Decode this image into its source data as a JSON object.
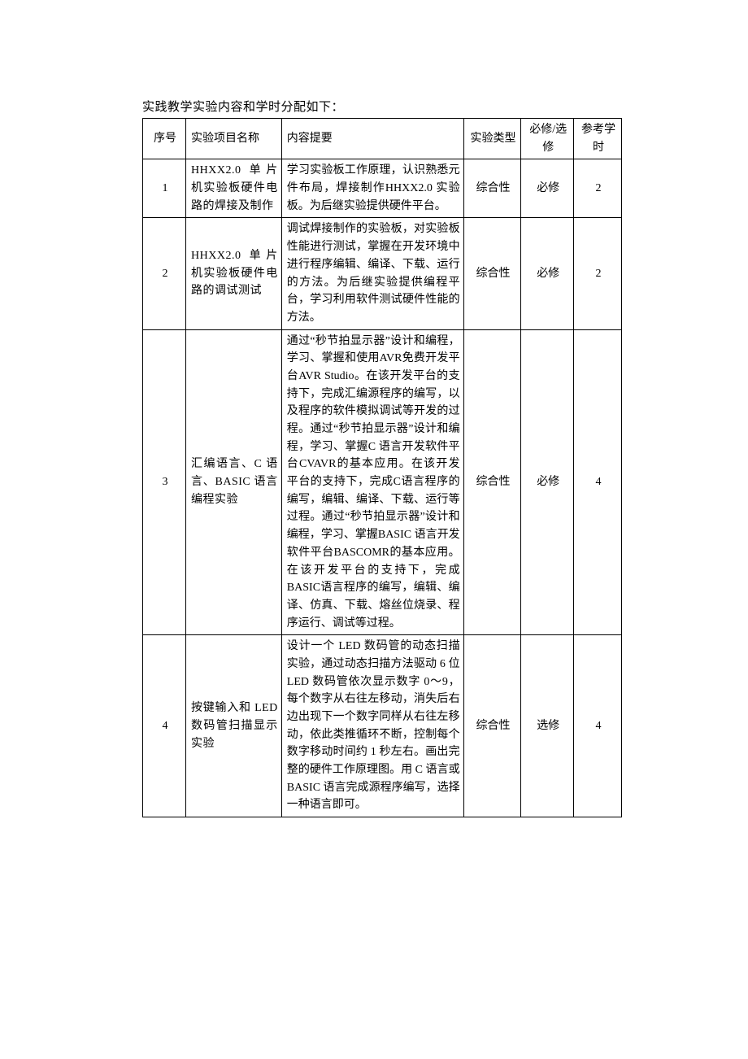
{
  "caption": "实践教学实验内容和学时分配如下：",
  "headers": {
    "index": "序号",
    "name": "实验项目名称",
    "desc": "内容提要",
    "type": "实验类型",
    "req": "必修/选修",
    "hours": "参考学时"
  },
  "rows": [
    {
      "index": "1",
      "name": "HHXX2.0 单片机实验板硬件电路的焊接及制作",
      "desc": "学习实验板工作原理，认识熟悉元件布局，焊接制作HHXX2.0 实验板。为后继实验提供硬件平台。",
      "type": "综合性",
      "req": "必修",
      "hours": "2"
    },
    {
      "index": "2",
      "name": "HHXX2.0 单片机实验板硬件电路的调试测试",
      "desc": "调试焊接制作的实验板，对实验板性能进行测试，掌握在开发环境中进行程序编辑、编译、下载、运行的方法。为后继实验提供编程平台，学习利用软件测试硬件性能的方法。",
      "type": "综合性",
      "req": "必修",
      "hours": "2"
    },
    {
      "index": "3",
      "name": "汇编语言、C 语言、BASIC 语言编程实验",
      "desc": "通过“秒节拍显示器”设计和编程，学习、掌握和使用AVR免费开发平台AVR Studio。在该开发平台的支持下，完成汇编源程序的编写，以及程序的软件模拟调试等开发的过程。通过“秒节拍显示器”设计和编程，学习、掌握C 语言开发软件平台CVAVR的基本应用。在该开发平台的支持下，完成C语言程序的编写，编辑、编译、下载、运行等过程。通过“秒节拍显示器”设计和编程，学习、掌握BASIC 语言开发软件平台BASCOMR的基本应用。在该开发平台的支持下，完成BASIC语言程序的编写，编辑、编译、仿真、下载、熔丝位烧录、程序运行、调试等过程。",
      "type": "综合性",
      "req": "必修",
      "hours": "4"
    },
    {
      "index": "4",
      "name": "按键输入和 LED 数码管扫描显示实验",
      "desc": "设计一个 LED 数码管的动态扫描实验，通过动态扫描方法驱动 6 位 LED 数码管依次显示数字 0～9，每个数字从右往左移动，消失后右边出现下一个数字同样从右往左移动，依此类推循环不断，控制每个数字移动时间约 1 秒左右。画出完整的硬件工作原理图。用 C 语言或 BASIC 语言完成源程序编写，选择一种语言即可。",
      "type": "综合性",
      "req": "选修",
      "hours": "4"
    }
  ]
}
